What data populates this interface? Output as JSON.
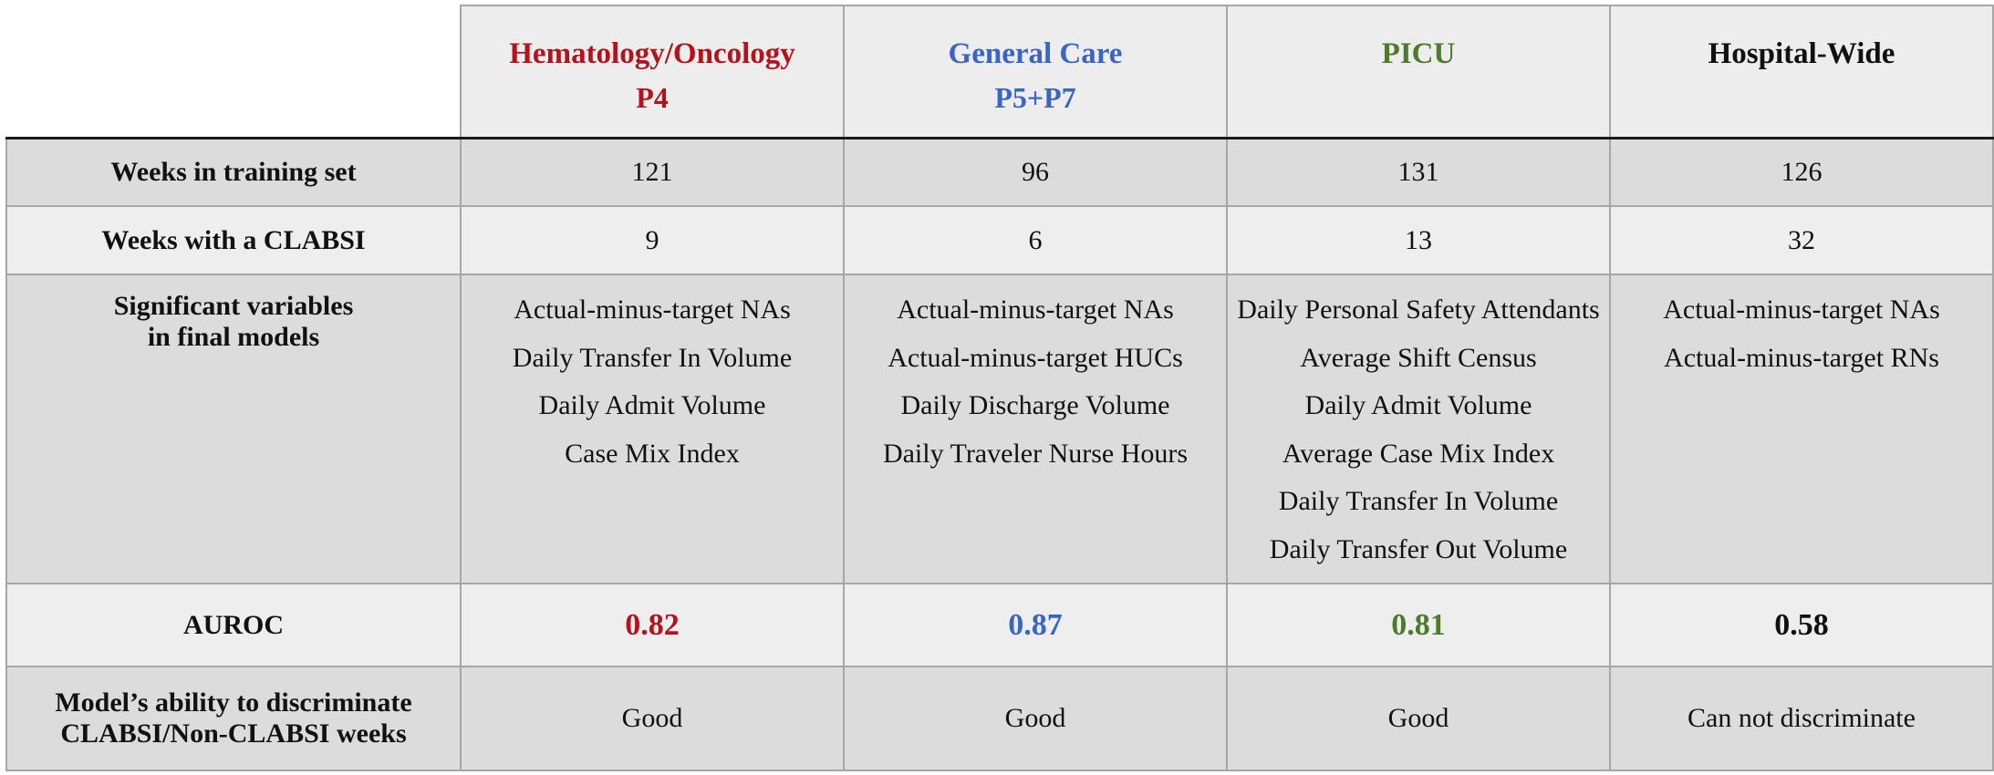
{
  "colors": {
    "hematology_oncology": "#b5121b",
    "general_care": "#3b65c4",
    "picu": "#4e7a2c",
    "hospital_wide": "#111111"
  },
  "columns": [
    {
      "name": "Hematology/Oncology",
      "sub": "P4"
    },
    {
      "name": "General Care",
      "sub": "P5+P7"
    },
    {
      "name": "PICU",
      "sub": ""
    },
    {
      "name": "Hospital-Wide",
      "sub": ""
    }
  ],
  "rows": {
    "weeks_training": {
      "label": "Weeks in training set",
      "values": [
        "121",
        "96",
        "131",
        "126"
      ]
    },
    "weeks_clabsi": {
      "label": "Weeks with a CLABSI",
      "values": [
        "9",
        "6",
        "13",
        "32"
      ]
    },
    "significant_vars": {
      "label_line1": "Significant variables",
      "label_line2": "in final models",
      "values": [
        [
          "Actual-minus-target NAs",
          "Daily Transfer In Volume",
          "Daily Admit Volume",
          "Case Mix Index"
        ],
        [
          "Actual-minus-target NAs",
          "Actual-minus-target HUCs",
          "Daily Discharge Volume",
          "Daily Traveler Nurse Hours"
        ],
        [
          "Daily Personal Safety Attendants",
          "Average Shift Census",
          "Daily Admit Volume",
          "Average Case Mix Index",
          "Daily Transfer In Volume",
          "Daily Transfer Out Volume"
        ],
        [
          "Actual-minus-target NAs",
          "Actual-minus-target RNs"
        ]
      ]
    },
    "auroc": {
      "label": "AUROC",
      "values": [
        "0.82",
        "0.87",
        "0.81",
        "0.58"
      ]
    },
    "ability": {
      "label_line1": "Model’s ability to discriminate",
      "label_line2": "CLABSI/Non-CLABSI weeks",
      "values": [
        "Good",
        "Good",
        "Good",
        "Can not discriminate"
      ]
    }
  }
}
